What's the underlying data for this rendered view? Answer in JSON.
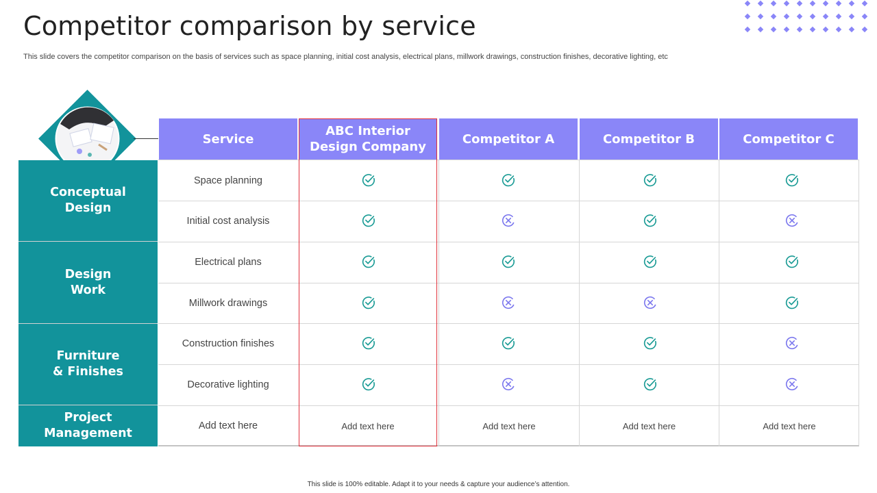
{
  "title": "Competitor comparison by service",
  "subtitle": "This slide covers the competitor comparison on the basis of services such as space planning, initial cost analysis, electrical plans, millwork drawings, construction finishes, decorative lighting, etc",
  "colors": {
    "header": "#8a86f8",
    "category": "#12939b",
    "check": "#1a9b95",
    "cross": "#7c78ee",
    "highlight_border": "#e0303a"
  },
  "table": {
    "headers": [
      "Service",
      "ABC Interior\nDesign Company",
      "Competitor A",
      "Competitor B",
      "Competitor C"
    ],
    "categories": [
      {
        "label": "Conceptual\nDesign",
        "rows": 2
      },
      {
        "label": "Design\nWork",
        "rows": 2
      },
      {
        "label": "Furniture\n& Finishes",
        "rows": 2
      },
      {
        "label": "Project\nManagement",
        "rows": 1
      }
    ],
    "rows": [
      {
        "service": "Space planning",
        "marks": [
          "check",
          "check",
          "check",
          "check"
        ]
      },
      {
        "service": "Initial cost analysis",
        "marks": [
          "check",
          "cross",
          "check",
          "cross"
        ]
      },
      {
        "service": "Electrical plans",
        "marks": [
          "check",
          "check",
          "check",
          "check"
        ]
      },
      {
        "service": "Millwork drawings",
        "marks": [
          "check",
          "cross",
          "cross",
          "check"
        ]
      },
      {
        "service": "Construction finishes",
        "marks": [
          "check",
          "check",
          "check",
          "cross"
        ]
      },
      {
        "service": "Decorative lighting",
        "marks": [
          "check",
          "cross",
          "check",
          "cross"
        ]
      }
    ],
    "last_row": {
      "service": "Add text here",
      "cells": [
        "Add text here",
        "Add text here",
        "Add text here",
        "Add text here"
      ]
    }
  },
  "footer": "This slide is 100% editable.  Adapt it to your needs & capture your audience’s attention."
}
